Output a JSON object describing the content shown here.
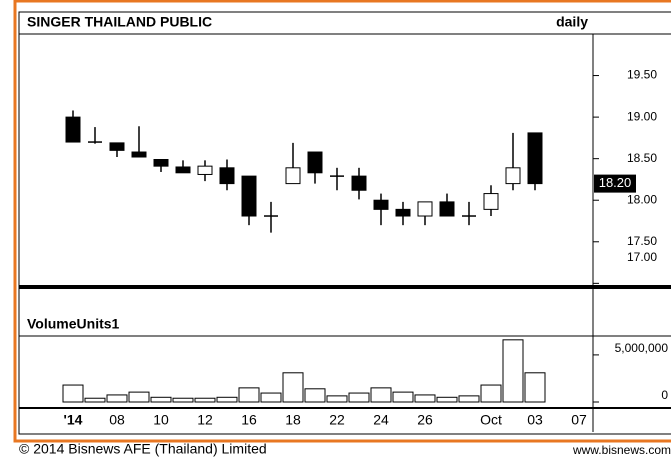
{
  "chart_data": {
    "type": "candlestick",
    "title": "SINGER THAILAND PUBLIC",
    "period": "daily",
    "volume_title": "VolumeUnits1",
    "footer": "© 2014 Bisnews AFE (Thailand) Limited",
    "footer_right": "www.bisnews.com",
    "last_price_label": "18.20",
    "categories": [
      "'14",
      null,
      "08",
      null,
      "10",
      null,
      "12",
      null,
      "16",
      null,
      "18",
      null,
      "22",
      null,
      "24",
      null,
      "26",
      null,
      null,
      "Oct",
      null,
      "03",
      null,
      "07"
    ],
    "open": [
      19.0,
      18.7,
      18.69,
      18.58,
      18.49,
      18.4,
      18.31,
      18.39,
      18.29,
      17.81,
      18.2,
      18.58,
      18.29,
      18.29,
      18.0,
      17.89,
      17.81,
      17.98,
      17.81,
      17.89,
      18.2,
      18.81,
      null,
      null
    ],
    "high": [
      19.08,
      18.88,
      18.69,
      18.89,
      18.49,
      18.48,
      18.48,
      18.49,
      18.29,
      17.98,
      18.69,
      18.58,
      18.39,
      18.39,
      18.08,
      17.98,
      17.98,
      18.08,
      17.98,
      18.18,
      18.81,
      18.81,
      null,
      null
    ],
    "low": [
      18.7,
      18.68,
      18.52,
      18.52,
      18.34,
      18.33,
      18.23,
      18.12,
      17.7,
      17.61,
      18.2,
      18.2,
      18.12,
      18.01,
      17.7,
      17.7,
      17.7,
      17.81,
      17.7,
      17.81,
      18.12,
      18.12,
      null,
      null
    ],
    "close": [
      18.7,
      18.7,
      18.6,
      18.52,
      18.41,
      18.33,
      18.41,
      18.2,
      17.81,
      17.81,
      18.39,
      18.33,
      18.29,
      18.12,
      17.89,
      17.81,
      17.98,
      17.81,
      17.81,
      18.08,
      18.39,
      18.2,
      null,
      null
    ],
    "volume": [
      1800000,
      400000,
      750000,
      1050000,
      500000,
      400000,
      400000,
      500000,
      1500000,
      950000,
      3100000,
      1400000,
      650000,
      950000,
      1500000,
      1050000,
      750000,
      500000,
      650000,
      1800000,
      6600000,
      3100000,
      null,
      null
    ],
    "ylim": [
      16.98,
      20.0
    ],
    "yticks": [
      {
        "value": 17,
        "label": "17.00"
      },
      {
        "value": 17.5,
        "label": "17.50"
      },
      {
        "value": 18,
        "label": "18.00"
      },
      {
        "value": 18.5,
        "label": "18.50"
      },
      {
        "value": 19,
        "label": "19.00"
      },
      {
        "value": 19.5,
        "label": "19.50"
      }
    ],
    "volume_ylim": [
      0,
      6900000
    ],
    "volume_yticks": [
      0,
      {
        "value": 5000000,
        "label": "5,000,000"
      }
    ],
    "up_color": "#ffffff",
    "down_color": "#000000",
    "border_color": "#e87722"
  }
}
